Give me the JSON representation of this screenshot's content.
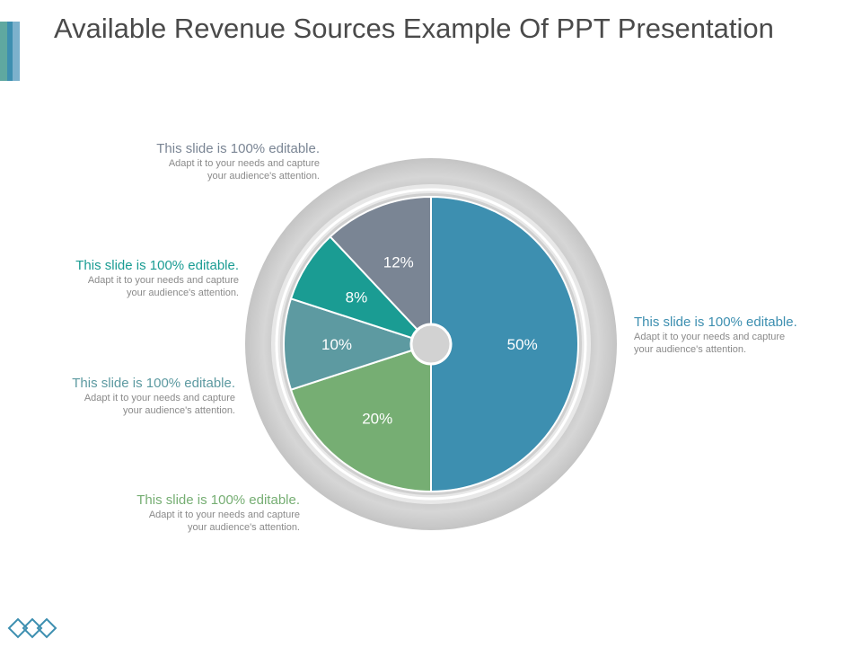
{
  "slide": {
    "title": "Available Revenue Sources Example Of PPT Presentation"
  },
  "chart_data": {
    "type": "pie",
    "style": "donut-with-ring",
    "start_angle_deg": 0,
    "direction": "clockwise",
    "slices": [
      {
        "label": "50%",
        "value": 50,
        "color": "#3d8fb0"
      },
      {
        "label": "20%",
        "value": 20,
        "color": "#76ae73"
      },
      {
        "label": "10%",
        "value": 10,
        "color": "#5d9aa1"
      },
      {
        "label": "8%",
        "value": 8,
        "color": "#1a9c93"
      },
      {
        "label": "12%",
        "value": 12,
        "color": "#7a8594"
      }
    ]
  },
  "callouts": [
    {
      "slice_index": 0,
      "heading": "This slide is 100% editable.",
      "body": "Adapt it to your needs and capture your audience's attention.",
      "color": "#3d8fb0"
    },
    {
      "slice_index": 1,
      "heading": "This slide is 100% editable.",
      "body": "Adapt it to your needs and capture your audience's attention.",
      "color": "#76ae73"
    },
    {
      "slice_index": 2,
      "heading": "This slide is 100% editable.",
      "body": "Adapt it to your needs and capture your audience's attention.",
      "color": "#5d9aa1"
    },
    {
      "slice_index": 3,
      "heading": "This slide is 100% editable.",
      "body": "Adapt it to your needs and capture your audience's attention.",
      "color": "#1a9c93"
    },
    {
      "slice_index": 4,
      "heading": "This slide is 100% editable.",
      "body": "Adapt it to your needs and capture your audience's attention.",
      "color": "#7a8594"
    }
  ],
  "theme": {
    "title_color": "#4a4a4a",
    "ring_color": "#c8c8c8",
    "logo_icon": "diamond-chain-logo"
  }
}
